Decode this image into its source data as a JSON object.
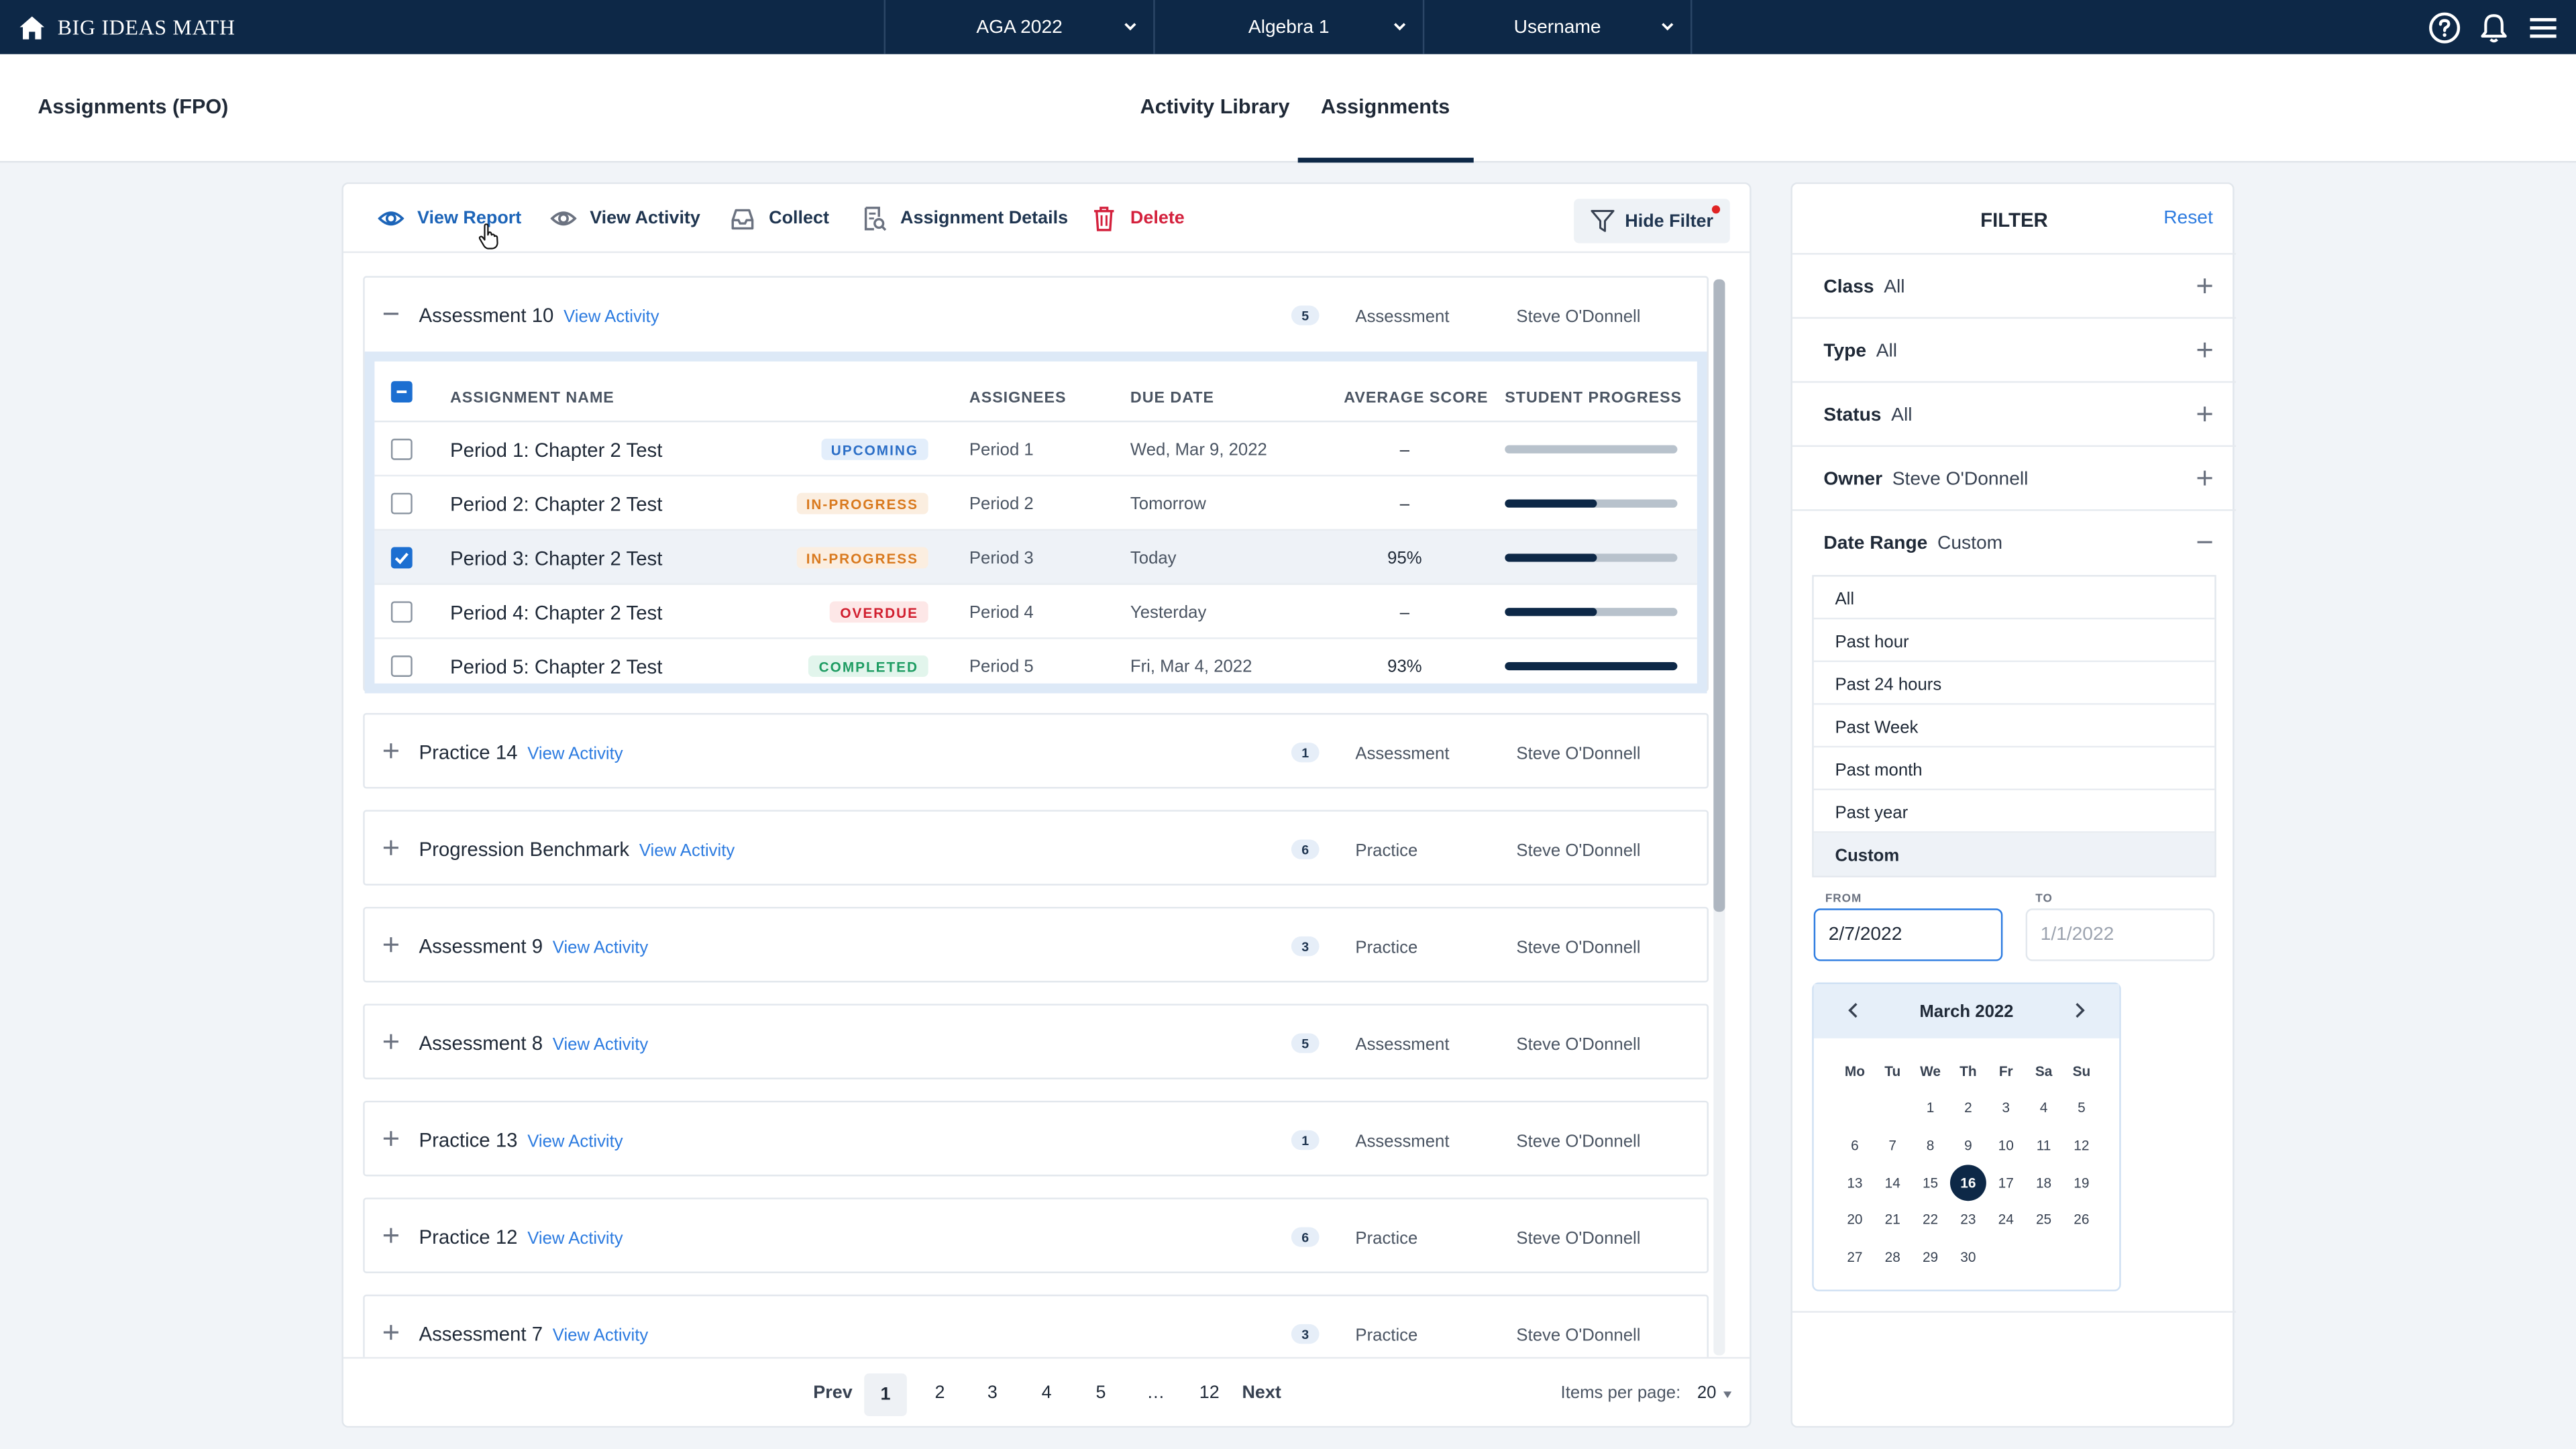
{
  "topnav": {
    "brand": "BIG IDEAS MATH",
    "selectors": [
      "AGA 2022",
      "Algebra 1",
      "Username"
    ]
  },
  "subheader": {
    "page_title": "Assignments (FPO)",
    "tabs": [
      {
        "label": "Activity Library",
        "active": false
      },
      {
        "label": "Assignments",
        "active": true
      }
    ]
  },
  "toolbar": {
    "view_report": "View Report",
    "view_activity": "View Activity",
    "collect": "Collect",
    "assignment_details": "Assignment Details",
    "delete": "Delete",
    "hide_filter": "Hide Filter"
  },
  "table": {
    "headers": [
      "ASSIGNMENT NAME",
      "ASSIGNEES",
      "DUE DATE",
      "AVERAGE SCORE",
      "STUDENT PROGRESS"
    ],
    "view_activity_link": "View Activity"
  },
  "groups": [
    {
      "name": "Assessment 10",
      "count": "5",
      "type": "Assessment",
      "owner": "Steve O'Donnell",
      "expanded": true,
      "rows": [
        {
          "name": "Period 1: Chapter 2 Test",
          "status": "UPCOMING",
          "status_key": "upcoming",
          "assignee": "Period 1",
          "due": "Wed, Mar 9, 2022",
          "score": "–",
          "progress": 0,
          "checked": false
        },
        {
          "name": "Period 2: Chapter 2 Test",
          "status": "IN-PROGRESS",
          "status_key": "inprogress",
          "assignee": "Period 2",
          "due": "Tomorrow",
          "score": "–",
          "progress": 0.53,
          "checked": false
        },
        {
          "name": "Period 3: Chapter 2 Test",
          "status": "IN-PROGRESS",
          "status_key": "inprogress",
          "assignee": "Period 3",
          "due": "Today",
          "score": "95%",
          "progress": 0.53,
          "checked": true
        },
        {
          "name": "Period 4: Chapter 2 Test",
          "status": "OVERDUE",
          "status_key": "overdue",
          "assignee": "Period 4",
          "due": "Yesterday",
          "score": "–",
          "progress": 0.53,
          "checked": false
        },
        {
          "name": "Period 5: Chapter 2 Test",
          "status": "COMPLETED",
          "status_key": "completed",
          "assignee": "Period 5",
          "due": "Fri, Mar 4, 2022",
          "score": "93%",
          "progress": 1.0,
          "checked": false
        }
      ]
    },
    {
      "name": "Practice 14",
      "count": "1",
      "type": "Assessment",
      "owner": "Steve O'Donnell",
      "expanded": false
    },
    {
      "name": "Progression Benchmark",
      "count": "6",
      "type": "Practice",
      "owner": "Steve O'Donnell",
      "expanded": false
    },
    {
      "name": "Assessment 9",
      "count": "3",
      "type": "Practice",
      "owner": "Steve O'Donnell",
      "expanded": false
    },
    {
      "name": "Assessment 8",
      "count": "5",
      "type": "Assessment",
      "owner": "Steve O'Donnell",
      "expanded": false
    },
    {
      "name": "Practice 13",
      "count": "1",
      "type": "Assessment",
      "owner": "Steve O'Donnell",
      "expanded": false
    },
    {
      "name": "Practice 12",
      "count": "6",
      "type": "Practice",
      "owner": "Steve O'Donnell",
      "expanded": false
    },
    {
      "name": "Assessment 7",
      "count": "3",
      "type": "Practice",
      "owner": "Steve O'Donnell",
      "expanded": false
    }
  ],
  "pagination": {
    "prev": "Prev",
    "next": "Next",
    "pages": [
      "1",
      "2",
      "3",
      "4",
      "5",
      "…",
      "12"
    ],
    "current": "1",
    "items_per_page_label": "Items per page:",
    "items_per_page": "20"
  },
  "filter": {
    "title": "FILTER",
    "reset": "Reset",
    "rows": [
      {
        "label": "Class",
        "value": "All"
      },
      {
        "label": "Type",
        "value": "All"
      },
      {
        "label": "Status",
        "value": "All"
      },
      {
        "label": "Owner",
        "value": "Steve O'Donnell"
      },
      {
        "label": "Date Range",
        "value": "Custom"
      }
    ],
    "date_range_options": [
      "All",
      "Past hour",
      "Past 24 hours",
      "Past Week",
      "Past month",
      "Past year",
      "Custom"
    ],
    "selected_option": "Custom",
    "from_label": "FROM",
    "to_label": "TO",
    "from_value": "2/7/2022",
    "to_placeholder": "1/1/2022",
    "calendar": {
      "title": "March 2022",
      "weekdays": [
        "Mo",
        "Tu",
        "We",
        "Th",
        "Fr",
        "Sa",
        "Su"
      ],
      "first_weekday_index": 2,
      "days_in_month": 31,
      "shown_days": 30,
      "today": 16
    }
  },
  "colors": {
    "navy": "#0d2847",
    "link_blue": "#2c7be0",
    "delete_red": "#d4213d"
  }
}
